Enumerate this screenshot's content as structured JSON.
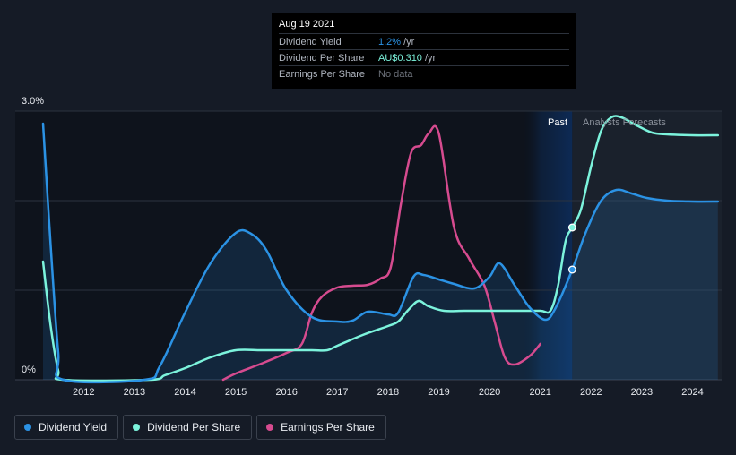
{
  "tooltip": {
    "date": "Aug 19 2021",
    "rows": [
      {
        "label": "Dividend Yield",
        "value": "1.2%",
        "unit": "/yr"
      },
      {
        "label": "Dividend Per Share",
        "value": "AU$0.310",
        "unit": "/yr"
      },
      {
        "label": "Earnings Per Share",
        "value": "No data",
        "unit": ""
      }
    ]
  },
  "regions": {
    "past": "Past",
    "forecast": "Analysts Forecasts"
  },
  "legend": [
    "Dividend Yield",
    "Dividend Per Share",
    "Earnings Per Share"
  ],
  "colors": {
    "background": "#151b26",
    "dividend_yield": "#2b92e4",
    "dividend_per_share": "#7cf3dc",
    "earnings_per_share": "#d64b8f",
    "grid": "#2c333f"
  },
  "chart_data": {
    "type": "line",
    "y_tick_labels": [
      "3.0%",
      "0%"
    ],
    "ylim_pct": [
      0,
      3.0
    ],
    "xlim": [
      2011.2,
      2024.5
    ],
    "x_ticks": [
      2012,
      2013,
      2014,
      2015,
      2016,
      2017,
      2018,
      2019,
      2020,
      2021,
      2022,
      2023,
      2024
    ],
    "past_end": 2021.63,
    "forecast_start": 2020.6,
    "series": [
      {
        "name": "Dividend Yield",
        "unit": "percent",
        "points": [
          [
            2011.2,
            2.86
          ],
          [
            2011.35,
            1.5
          ],
          [
            2011.5,
            0.3
          ],
          [
            2011.6,
            0.0
          ],
          [
            2013.2,
            0.0
          ],
          [
            2013.5,
            0.15
          ],
          [
            2014.0,
            0.75
          ],
          [
            2014.5,
            1.3
          ],
          [
            2015.0,
            1.64
          ],
          [
            2015.3,
            1.63
          ],
          [
            2015.6,
            1.45
          ],
          [
            2016.0,
            1.0
          ],
          [
            2016.5,
            0.7
          ],
          [
            2017.0,
            0.65
          ],
          [
            2017.3,
            0.66
          ],
          [
            2017.6,
            0.76
          ],
          [
            2018.0,
            0.73
          ],
          [
            2018.2,
            0.75
          ],
          [
            2018.5,
            1.15
          ],
          [
            2018.7,
            1.17
          ],
          [
            2019.0,
            1.12
          ],
          [
            2019.3,
            1.07
          ],
          [
            2019.7,
            1.02
          ],
          [
            2020.0,
            1.15
          ],
          [
            2020.2,
            1.3
          ],
          [
            2020.5,
            1.05
          ],
          [
            2020.8,
            0.8
          ],
          [
            2021.1,
            0.67
          ],
          [
            2021.3,
            0.8
          ],
          [
            2021.63,
            1.23
          ],
          [
            2021.9,
            1.65
          ],
          [
            2022.2,
            2.0
          ],
          [
            2022.5,
            2.12
          ],
          [
            2022.8,
            2.08
          ],
          [
            2023.1,
            2.03
          ],
          [
            2023.5,
            2.0
          ],
          [
            2024.0,
            1.99
          ],
          [
            2024.5,
            1.99
          ]
        ]
      },
      {
        "name": "Dividend Per Share",
        "unit": "percent-scale",
        "points": [
          [
            2011.2,
            1.32
          ],
          [
            2011.35,
            0.6
          ],
          [
            2011.5,
            0.1
          ],
          [
            2011.6,
            0.0
          ],
          [
            2013.3,
            0.0
          ],
          [
            2013.6,
            0.05
          ],
          [
            2014.0,
            0.13
          ],
          [
            2014.5,
            0.25
          ],
          [
            2015.0,
            0.33
          ],
          [
            2015.5,
            0.33
          ],
          [
            2016.0,
            0.33
          ],
          [
            2016.5,
            0.33
          ],
          [
            2016.8,
            0.33
          ],
          [
            2017.0,
            0.38
          ],
          [
            2017.5,
            0.5
          ],
          [
            2018.0,
            0.6
          ],
          [
            2018.2,
            0.65
          ],
          [
            2018.4,
            0.78
          ],
          [
            2018.6,
            0.88
          ],
          [
            2018.8,
            0.82
          ],
          [
            2019.1,
            0.77
          ],
          [
            2019.5,
            0.77
          ],
          [
            2020.0,
            0.77
          ],
          [
            2020.5,
            0.77
          ],
          [
            2021.0,
            0.77
          ],
          [
            2021.2,
            0.77
          ],
          [
            2021.35,
            1.05
          ],
          [
            2021.5,
            1.55
          ],
          [
            2021.63,
            1.7
          ],
          [
            2021.8,
            1.9
          ],
          [
            2022.0,
            2.38
          ],
          [
            2022.2,
            2.78
          ],
          [
            2022.4,
            2.93
          ],
          [
            2022.6,
            2.93
          ],
          [
            2022.9,
            2.84
          ],
          [
            2023.2,
            2.76
          ],
          [
            2023.5,
            2.74
          ],
          [
            2024.0,
            2.73
          ],
          [
            2024.5,
            2.73
          ]
        ]
      },
      {
        "name": "Earnings Per Share",
        "unit": "percent-scale",
        "points": [
          [
            2014.75,
            0.0
          ],
          [
            2015.0,
            0.07
          ],
          [
            2015.5,
            0.18
          ],
          [
            2016.0,
            0.3
          ],
          [
            2016.3,
            0.4
          ],
          [
            2016.5,
            0.75
          ],
          [
            2016.7,
            0.93
          ],
          [
            2017.0,
            1.03
          ],
          [
            2017.3,
            1.05
          ],
          [
            2017.6,
            1.06
          ],
          [
            2017.85,
            1.13
          ],
          [
            2018.05,
            1.25
          ],
          [
            2018.25,
            1.95
          ],
          [
            2018.45,
            2.53
          ],
          [
            2018.65,
            2.62
          ],
          [
            2018.8,
            2.75
          ],
          [
            2019.0,
            2.75
          ],
          [
            2019.3,
            1.7
          ],
          [
            2019.6,
            1.35
          ],
          [
            2019.9,
            1.05
          ],
          [
            2020.1,
            0.65
          ],
          [
            2020.3,
            0.25
          ],
          [
            2020.5,
            0.17
          ],
          [
            2020.8,
            0.27
          ],
          [
            2021.0,
            0.4
          ]
        ]
      }
    ],
    "markers": [
      {
        "series": "Dividend Yield",
        "x": 2021.63,
        "y": 1.23
      },
      {
        "series": "Dividend Per Share",
        "x": 2021.63,
        "y": 1.7
      }
    ]
  }
}
